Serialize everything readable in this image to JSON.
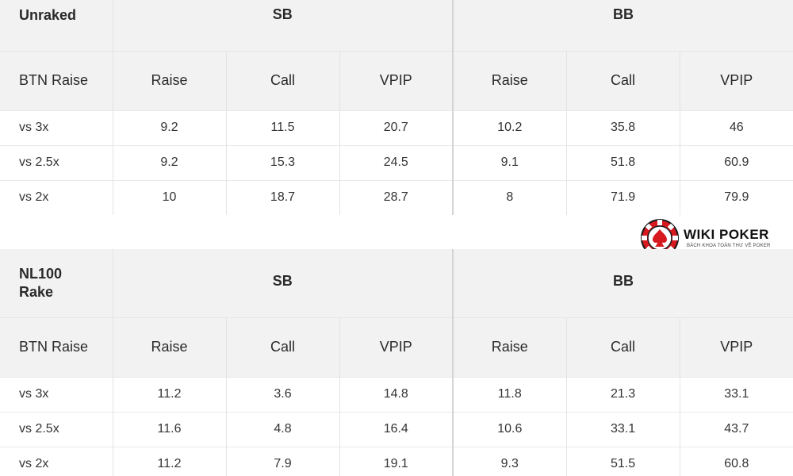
{
  "tables": [
    {
      "corner_label": "Unraked",
      "groups": [
        "SB",
        "BB"
      ],
      "row_header": "BTN Raise",
      "sub_headers": [
        "Raise",
        "Call",
        "VPIP",
        "Raise",
        "Call",
        "VPIP"
      ],
      "rows": [
        {
          "label": "vs 3x",
          "values": [
            "9.2",
            "11.5",
            "20.7",
            "10.2",
            "35.8",
            "46"
          ]
        },
        {
          "label": "vs 2.5x",
          "values": [
            "9.2",
            "15.3",
            "24.5",
            "9.1",
            "51.8",
            "60.9"
          ]
        },
        {
          "label": "vs 2x",
          "values": [
            "10",
            "18.7",
            "28.7",
            "8",
            "71.9",
            "79.9"
          ]
        }
      ]
    },
    {
      "corner_label_lines": [
        "NL100",
        "Rake"
      ],
      "groups": [
        "SB",
        "BB"
      ],
      "row_header": "BTN Raise",
      "sub_headers": [
        "Raise",
        "Call",
        "VPIP",
        "Raise",
        "Call",
        "VPIP"
      ],
      "rows": [
        {
          "label": "vs 3x",
          "values": [
            "11.2",
            "3.6",
            "14.8",
            "11.8",
            "21.3",
            "33.1"
          ]
        },
        {
          "label": "vs 2.5x",
          "values": [
            "11.6",
            "4.8",
            "16.4",
            "10.6",
            "33.1",
            "43.7"
          ]
        },
        {
          "label": "vs 2x",
          "values": [
            "11.2",
            "7.9",
            "19.1",
            "9.3",
            "51.5",
            "60.8"
          ]
        }
      ]
    }
  ],
  "logo": {
    "name": "WIKI POKER",
    "tagline": "BÁCH KHOA TOÀN THƯ VỀ POKER",
    "icon": "poker-chip-spade-icon",
    "colors": {
      "chip_red": "#d71920",
      "chip_dark": "#1a1a1a"
    }
  }
}
